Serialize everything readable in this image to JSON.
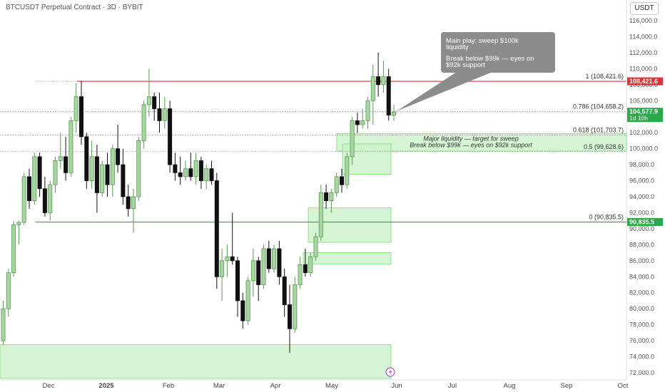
{
  "header": {
    "title": "BTCUSDT Perpetual Contract · 3D · BYBIT",
    "currency_button": "USDT"
  },
  "colors": {
    "up": "#5b9a55",
    "up_fill": "#a7d6a0",
    "down": "#111111",
    "resistance": "#e0303a",
    "support": "#2aa84a",
    "zone_fill": "#c8f2c6",
    "zone_stroke": "#7fd67c",
    "fib_line": "#888888",
    "callout_bg": "#8c8c8c"
  },
  "annotations": {
    "callout_line1": "Main play: sweep $100k",
    "callout_line2": "liquidity",
    "callout_line3": "Break below $99k — eyes on",
    "callout_line4": "$92k support",
    "zone_label1": "Major liquidity — target for sweep",
    "zone_label2": "Break below $99k — eyes on $92k support"
  },
  "chart_data": {
    "type": "candlestick",
    "y_axis": {
      "ylim": [
        71000,
        117500
      ],
      "tick_labels": [
        "72,000.0",
        "74,000.0",
        "76,000.0",
        "78,000.0",
        "80,000.0",
        "82,000.0",
        "84,000.0",
        "86,000.0",
        "88,000.0",
        "90,000.0",
        "92,000.0",
        "94,000.0",
        "96,000.0",
        "98,000.0",
        "100,000.0",
        "102,000.0",
        "104,000.0",
        "106,000.0",
        "108,000.0",
        "110,000.0",
        "112,000.0",
        "114,000.0",
        "116,000.0"
      ],
      "tick_values": [
        72000,
        74000,
        76000,
        78000,
        80000,
        82000,
        84000,
        86000,
        88000,
        90000,
        92000,
        94000,
        96000,
        98000,
        100000,
        102000,
        104000,
        106000,
        108000,
        110000,
        112000,
        114000,
        116000
      ]
    },
    "x_axis": {
      "labels": [
        "Dec",
        "2025",
        "Feb",
        "Mar",
        "Apr",
        "May",
        "Jun",
        "Jul",
        "Aug",
        "Sep",
        "Oct"
      ],
      "bold": [
        false,
        true,
        false,
        false,
        false,
        false,
        false,
        false,
        false,
        false,
        false
      ]
    },
    "price_tags": [
      {
        "label": "108,421.6",
        "value": 108421.6,
        "color": "#e0303a"
      },
      {
        "label": "104,577.9",
        "sub": "1d 10h",
        "value": 104577.9,
        "color": "#2aa84a"
      },
      {
        "label": "90,835.5",
        "value": 90835.5,
        "color": "#2aa84a"
      }
    ],
    "fib_levels": [
      {
        "label": "1 (108,421.6)",
        "value": 108421.6
      },
      {
        "label": "0.786 (104,658.2)",
        "value": 104658.2
      },
      {
        "label": "0.618 (101,703.7)",
        "value": 101703.7
      },
      {
        "label": "0.5 (99,628.6)",
        "value": 99628.6
      },
      {
        "label": "0 (90,835.5)",
        "value": 90835.5
      }
    ],
    "zones": [
      {
        "name": "major-liquidity-zone",
        "from": 99700,
        "to": 101900
      },
      {
        "name": "ob-99k",
        "from": 96800,
        "to": 100600
      },
      {
        "name": "ob-92k",
        "from": 88300,
        "to": 92600
      },
      {
        "name": "ob-86k",
        "from": 85600,
        "to": 87000
      },
      {
        "name": "demand-75k",
        "from": 71300,
        "to": 75500
      }
    ],
    "candles": [
      [
        76000,
        81000,
        75500,
        80000
      ],
      [
        80000,
        85000,
        79000,
        84500
      ],
      [
        84500,
        91000,
        84000,
        90500
      ],
      [
        90500,
        91000,
        88000,
        90800
      ],
      [
        90800,
        97000,
        90500,
        96500
      ],
      [
        96500,
        97500,
        92500,
        93500
      ],
      [
        93500,
        99500,
        93000,
        99000
      ],
      [
        99000,
        99500,
        94000,
        95000
      ],
      [
        95000,
        96500,
        91500,
        92000
      ],
      [
        92000,
        96000,
        91000,
        95500
      ],
      [
        95500,
        99000,
        94500,
        98500
      ],
      [
        98500,
        102000,
        97500,
        99000
      ],
      [
        99000,
        101500,
        96000,
        97000
      ],
      [
        97000,
        104000,
        96500,
        103500
      ],
      [
        103500,
        108200,
        102000,
        106500
      ],
      [
        106500,
        108500,
        100500,
        101500
      ],
      [
        101500,
        102000,
        95000,
        96000
      ],
      [
        96000,
        101000,
        95000,
        99000
      ],
      [
        99000,
        100500,
        92000,
        94500
      ],
      [
        94500,
        98500,
        94000,
        98000
      ],
      [
        98000,
        99500,
        94000,
        95500
      ],
      [
        95500,
        100500,
        94000,
        100000
      ],
      [
        100000,
        103000,
        97000,
        98000
      ],
      [
        98000,
        100000,
        93000,
        94000
      ],
      [
        94000,
        95500,
        91500,
        92500
      ],
      [
        92500,
        95000,
        89500,
        94000
      ],
      [
        94000,
        101500,
        93500,
        101000
      ],
      [
        101000,
        106000,
        100000,
        105500
      ],
      [
        105500,
        110000,
        104000,
        106500
      ],
      [
        106500,
        107000,
        103500,
        105000
      ],
      [
        105000,
        107000,
        102000,
        103500
      ],
      [
        103500,
        106500,
        102500,
        105000
      ],
      [
        105000,
        106000,
        97000,
        98000
      ],
      [
        98000,
        99500,
        96000,
        97000
      ],
      [
        97000,
        99000,
        95500,
        96500
      ],
      [
        96500,
        98500,
        96000,
        97500
      ],
      [
        97500,
        99500,
        96000,
        96500
      ],
      [
        96500,
        99500,
        95500,
        98500
      ],
      [
        98500,
        99000,
        95000,
        96000
      ],
      [
        96000,
        98000,
        95000,
        97500
      ],
      [
        97500,
        98500,
        95500,
        96000
      ],
      [
        96000,
        97000,
        82500,
        84000
      ],
      [
        84000,
        87500,
        81000,
        86000
      ],
      [
        86000,
        88000,
        84000,
        86500
      ],
      [
        86500,
        92000,
        85500,
        86000
      ],
      [
        86000,
        86500,
        79000,
        81000
      ],
      [
        81000,
        82000,
        77500,
        78500
      ],
      [
        78500,
        84000,
        78000,
        83500
      ],
      [
        83500,
        87500,
        81500,
        86000
      ],
      [
        86000,
        86500,
        81000,
        83000
      ],
      [
        83000,
        88000,
        82500,
        87500
      ],
      [
        87500,
        88500,
        84500,
        85000
      ],
      [
        85000,
        88000,
        84500,
        87500
      ],
      [
        87500,
        88500,
        83000,
        84000
      ],
      [
        84000,
        85000,
        79000,
        80500
      ],
      [
        80500,
        83000,
        74500,
        77500
      ],
      [
        77500,
        84000,
        77000,
        83000
      ],
      [
        83000,
        86500,
        82500,
        85500
      ],
      [
        85500,
        87500,
        84000,
        84500
      ],
      [
        84500,
        87000,
        84000,
        86500
      ],
      [
        86500,
        89500,
        86000,
        89000
      ],
      [
        89000,
        95500,
        88500,
        94500
      ],
      [
        94500,
        95500,
        92500,
        93500
      ],
      [
        93500,
        95000,
        92000,
        94500
      ],
      [
        94500,
        97000,
        94000,
        96500
      ],
      [
        96500,
        97500,
        94500,
        95500
      ],
      [
        95500,
        99500,
        95000,
        99000
      ],
      [
        99000,
        104000,
        98000,
        103500
      ],
      [
        103500,
        104500,
        102000,
        103000
      ],
      [
        103000,
        105000,
        102500,
        103500
      ],
      [
        103500,
        106500,
        102500,
        106000
      ],
      [
        106000,
        110500,
        103000,
        109000
      ],
      [
        109000,
        112000,
        106500,
        108000
      ],
      [
        108000,
        111000,
        107000,
        109000
      ],
      [
        109000,
        110000,
        103500,
        104200
      ],
      [
        104200,
        105500,
        103500,
        104578
      ]
    ]
  }
}
